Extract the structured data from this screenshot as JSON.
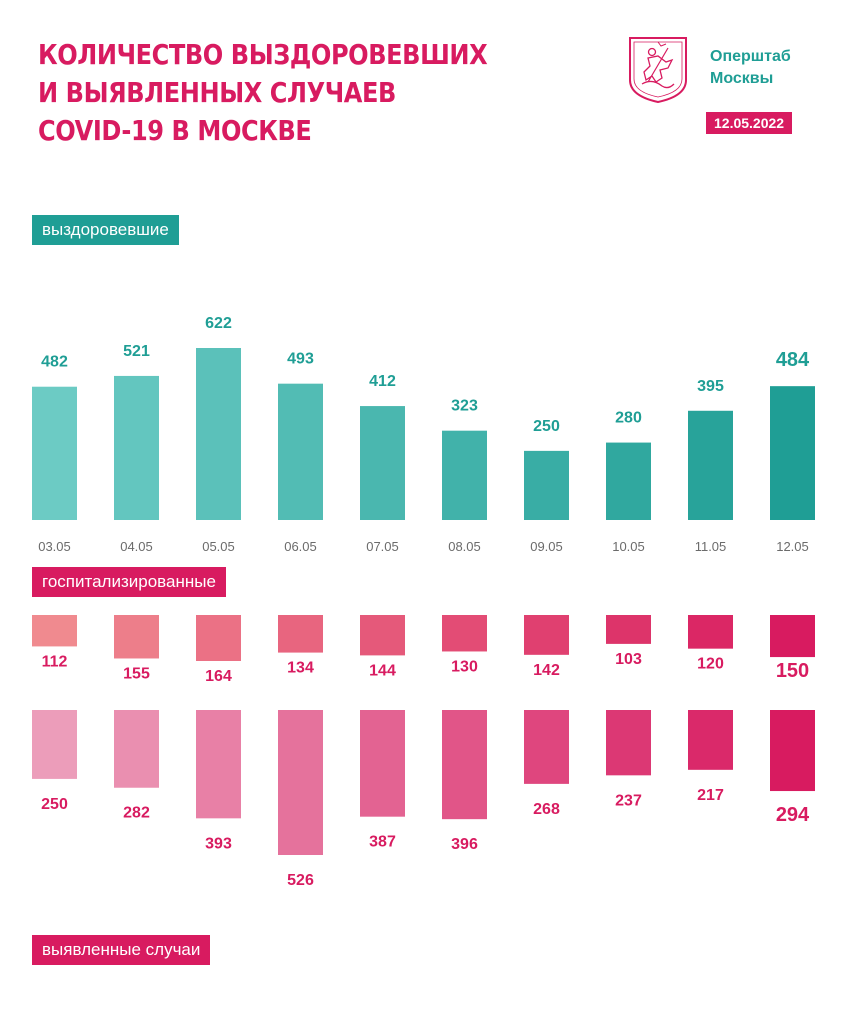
{
  "header": {
    "title_lines": [
      "Количество выздоровевших",
      "и выявленных случаев",
      "COVID-19 в Москве"
    ],
    "org_lines": [
      "Оперштаб",
      "Москвы"
    ],
    "date": "12.05.2022",
    "logo_icon": "moscow-coat-of-arms-icon"
  },
  "sections": {
    "recovered": "выздоровевшие",
    "hospitalized": "госпитализированные",
    "cases": "выявленные случаи"
  },
  "colors": {
    "teal_light": "#6ccbc4",
    "teal_dark": "#1f9e95",
    "pink_light": "#f08a8f",
    "pink_dark": "#d81b60",
    "case_light": "#ec9dba",
    "case_dark": "#d81b60"
  },
  "chart_data": {
    "type": "bar",
    "categories": [
      "03.05",
      "04.05",
      "05.05",
      "06.05",
      "07.05",
      "08.05",
      "09.05",
      "10.05",
      "11.05",
      "12.05"
    ],
    "series": [
      {
        "name": "выздоровевшие",
        "values": [
          482,
          521,
          622,
          493,
          412,
          323,
          250,
          280,
          395,
          484
        ]
      },
      {
        "name": "госпитализированные",
        "values": [
          112,
          155,
          164,
          134,
          144,
          130,
          142,
          103,
          120,
          150
        ]
      },
      {
        "name": "выявленные случаи",
        "values": [
          250,
          282,
          393,
          526,
          387,
          396,
          268,
          237,
          217,
          294
        ]
      }
    ]
  }
}
